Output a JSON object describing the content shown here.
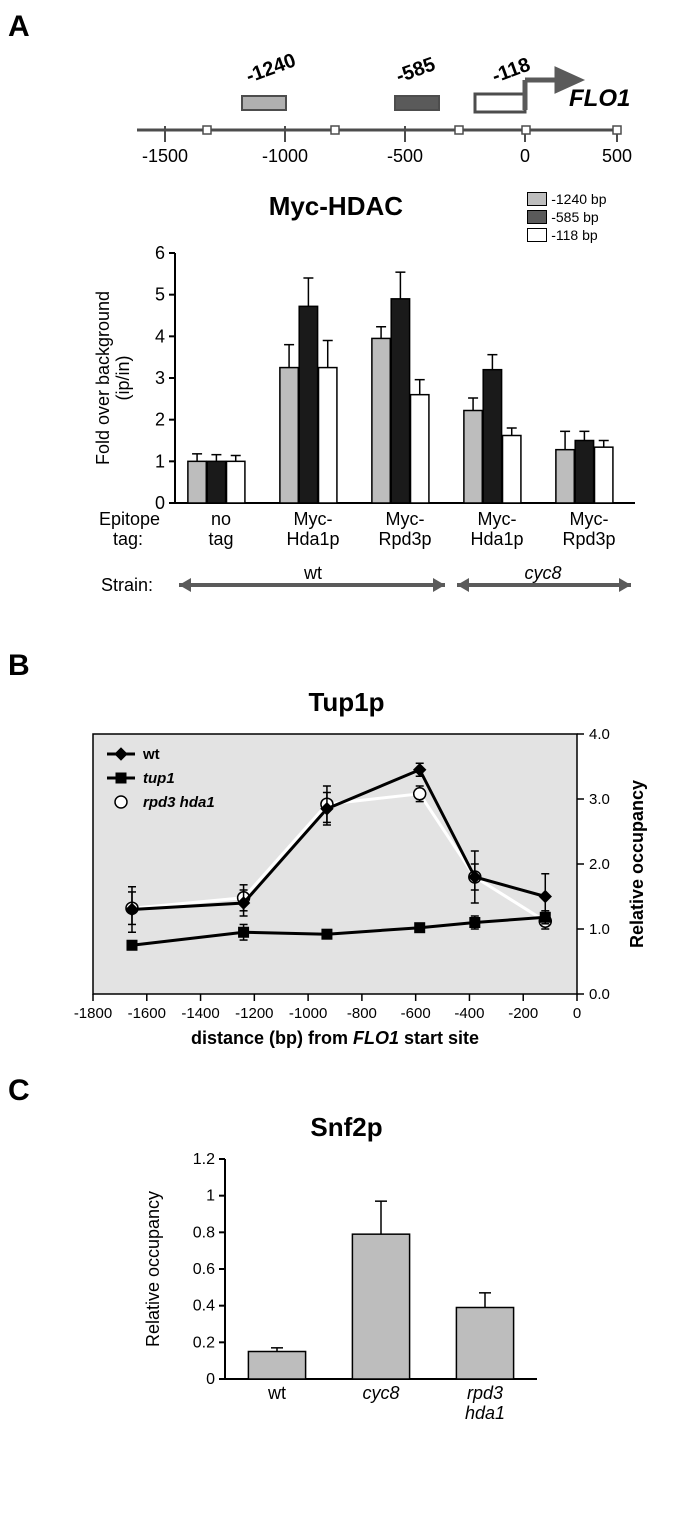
{
  "panelA": {
    "label": "A",
    "schematic": {
      "gene_label": "FLO1",
      "probe_labels": [
        "-1240",
        "-585",
        "-118"
      ],
      "probe_colors": [
        "#b0b0b0",
        "#5a5a5a",
        "#ffffff"
      ],
      "probe_stroke": "#4d4d4d",
      "arrow_color": "#5a5a5a",
      "axis_ticks": [
        "-1500",
        "-1000",
        "-500",
        "0",
        "500"
      ],
      "ruler_small_boxes_color": "#4d4d4d"
    },
    "chart": {
      "title": "Myc-HDAC",
      "legend": [
        {
          "label": "-1240 bp",
          "fill": "#bdbdbd",
          "stroke": "#000000"
        },
        {
          "label": "-585 bp",
          "fill": "#5a5a5a",
          "stroke": "#000000"
        },
        {
          "label": "-118 bp",
          "fill": "#ffffff",
          "stroke": "#000000"
        }
      ],
      "y_label": "Fold over background\n(ip/in)",
      "x_row1_label": "Epitope",
      "x_row1_label2": "tag:",
      "x_row2_label": "Strain:",
      "strain_labels": [
        "wt",
        "cyc8"
      ],
      "strain_italic": [
        false,
        true
      ],
      "categories": [
        "no\ntag",
        "Myc-\nHda1p",
        "Myc-\nRpd3p",
        "Myc-\nHda1p",
        "Myc-\nRpd3p"
      ],
      "series_colors": [
        "#bdbdbd",
        "#1a1a1a",
        "#ffffff"
      ],
      "series_stroke": "#000000",
      "ylim": [
        0,
        6
      ],
      "ytick_step": 1,
      "grid_color": "#e3e3e3",
      "axis_color": "#000000",
      "axis_fontsize": 18,
      "label_fontsize": 18,
      "title_fontsize": 26,
      "data": [
        {
          "vals": [
            1.0,
            1.0,
            1.0
          ],
          "errs": [
            0.18,
            0.16,
            0.14
          ]
        },
        {
          "vals": [
            3.25,
            4.72,
            3.25
          ],
          "errs": [
            0.55,
            0.68,
            0.65
          ]
        },
        {
          "vals": [
            3.95,
            4.9,
            2.6
          ],
          "errs": [
            0.28,
            0.64,
            0.36
          ]
        },
        {
          "vals": [
            2.22,
            3.2,
            1.62
          ],
          "errs": [
            0.3,
            0.36,
            0.18
          ]
        },
        {
          "vals": [
            1.28,
            1.5,
            1.34
          ],
          "errs": [
            0.44,
            0.22,
            0.16
          ]
        }
      ],
      "arrow_color": "#5a5a5a"
    }
  },
  "panelB": {
    "label": "B",
    "title": "Tup1p",
    "plot_bg": "#e3e3e3",
    "plot_border": "#000000",
    "axis_color": "#000000",
    "x_label": "distance (bp) from FLO1 start site",
    "y_label": "Relative occupancy",
    "x_ticks": [
      "-1800",
      "-1600",
      "-1400",
      "-1200",
      "-1000",
      "-800",
      "-600",
      "-400",
      "-200",
      "0"
    ],
    "y_ticks": [
      "0.0",
      "1.0",
      "2.0",
      "3.0",
      "4.0"
    ],
    "xlim": [
      -1800,
      0
    ],
    "ylim": [
      0,
      4
    ],
    "legend": [
      {
        "label": "wt",
        "marker": "diamond",
        "fill": "#000000",
        "line_color": "#000000",
        "italic": false,
        "line": true
      },
      {
        "label": "tup1",
        "marker": "square",
        "fill": "#000000",
        "line_color": "#000000",
        "italic": true,
        "line": true
      },
      {
        "label": "rpd3 hda1",
        "marker": "circle",
        "fill": "#ffffff",
        "line_color": "#ffffff",
        "italic": true,
        "line": true
      }
    ],
    "series": {
      "wt": {
        "color": "#000000",
        "marker": "diamond",
        "fill": "#000000",
        "line_width": 3,
        "x": [
          -1655,
          -1240,
          -930,
          -585,
          -380,
          -118
        ],
        "y": [
          1.3,
          1.4,
          2.85,
          3.45,
          1.8,
          1.5
        ],
        "err": [
          0.35,
          0.2,
          0.25,
          0.1,
          0.4,
          0.35
        ]
      },
      "tup1": {
        "color": "#000000",
        "marker": "square",
        "fill": "#000000",
        "line_width": 3,
        "x": [
          -1655,
          -1240,
          -930,
          -585,
          -380,
          -118
        ],
        "y": [
          0.75,
          0.95,
          0.92,
          1.02,
          1.1,
          1.18
        ],
        "err": [
          0.05,
          0.12,
          0.06,
          0.06,
          0.1,
          0.1
        ]
      },
      "rpd3_hda1": {
        "color": "#ffffff",
        "marker": "circle",
        "fill": "#ffffff",
        "marker_stroke": "#000000",
        "line_width": 3,
        "x": [
          -1655,
          -1240,
          -930,
          -585,
          -380,
          -118
        ],
        "y": [
          1.32,
          1.48,
          2.92,
          3.08,
          1.8,
          1.12
        ],
        "err": [
          0.25,
          0.2,
          0.28,
          0.12,
          0.2,
          0.12
        ]
      }
    },
    "label_fontsize": 18
  },
  "panelC": {
    "label": "C",
    "title": "Snf2p",
    "y_label": "Relative occupancy",
    "categories": [
      "wt",
      "cyc8",
      "rpd3\nhda1"
    ],
    "cat_italic": [
      false,
      true,
      true
    ],
    "values": [
      0.15,
      0.79,
      0.39
    ],
    "errs": [
      0.02,
      0.18,
      0.08
    ],
    "bar_color": "#bdbdbd",
    "bar_stroke": "#000000",
    "axis_color": "#000000",
    "ylim": [
      0,
      1.2
    ],
    "ytick_step": 0.2,
    "label_fontsize": 18
  }
}
